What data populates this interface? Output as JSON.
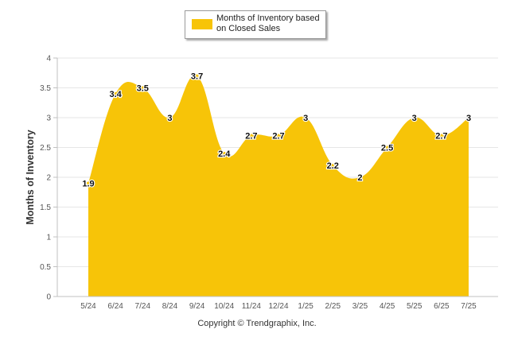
{
  "chart_data": {
    "type": "area",
    "categories": [
      "5/24",
      "6/24",
      "7/24",
      "8/24",
      "9/24",
      "10/24",
      "11/24",
      "12/24",
      "1/25",
      "2/25",
      "3/25",
      "4/25",
      "5/25",
      "6/25",
      "7/25"
    ],
    "series": [
      {
        "name": "Months of Inventory based on Closed Sales",
        "values": [
          1.9,
          3.4,
          3.5,
          3,
          3.7,
          2.4,
          2.7,
          2.7,
          3,
          2.2,
          2,
          2.5,
          3,
          2.7,
          3
        ],
        "color": "#F7C408"
      }
    ],
    "data_labels": [
      "1.9",
      "3.4",
      "3.5",
      "3",
      "3.7",
      "2.4",
      "2.7",
      "2.7",
      "3",
      "2.2",
      "2",
      "2.5",
      "3",
      "2.7",
      "3"
    ],
    "ylabel": "Months of Inventory",
    "xlabel": "",
    "ylim": [
      0,
      4
    ],
    "yticks": [
      "0",
      "0.5",
      "1",
      "1.5",
      "2",
      "2.5",
      "3",
      "3.5",
      "4"
    ],
    "grid": true,
    "legend_position": "top-center",
    "curve": "smooth"
  },
  "legend": {
    "label": "Months of Inventory based on Closed Sales",
    "color": "#F7C408"
  },
  "footer": {
    "copyright": "Copyright © Trendgraphix, Inc."
  }
}
